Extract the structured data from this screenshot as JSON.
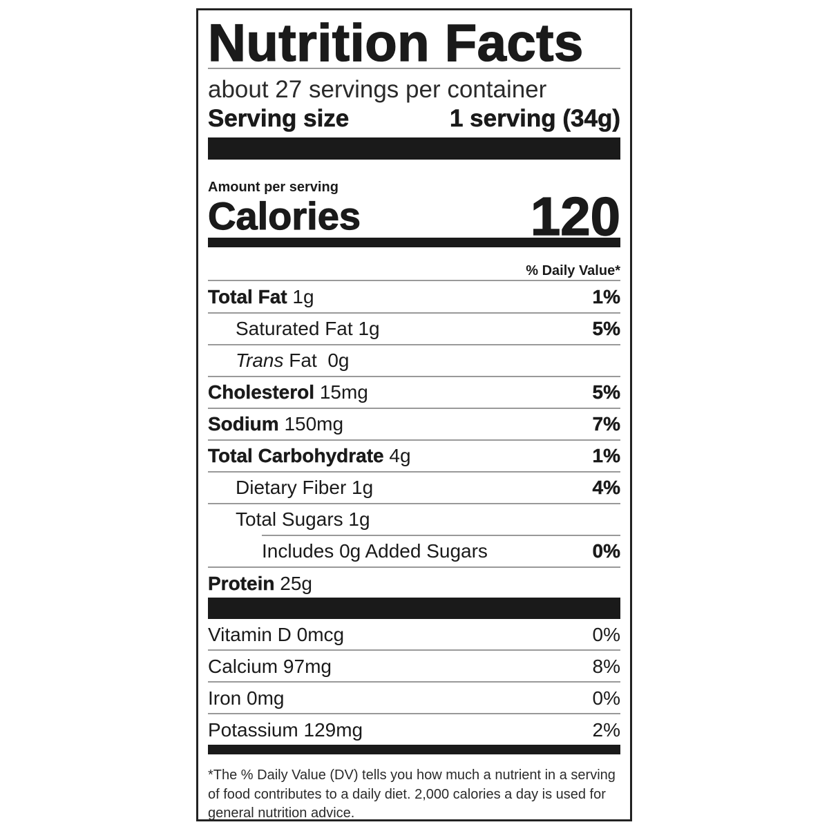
{
  "title": "Nutrition Facts",
  "servings_per_container": "about 27 servings per container",
  "serving_size": {
    "label": "Serving size",
    "value": "1 serving (34g)"
  },
  "amount_per_serving": "Amount per serving",
  "calories": {
    "label": "Calories",
    "value": "120"
  },
  "daily_value_header": "% Daily Value*",
  "nutrients": [
    {
      "name": "Total Fat",
      "amount": "1g",
      "dv": "1%"
    },
    {
      "name": "Saturated Fat",
      "amount": "1g",
      "dv": "5%"
    },
    {
      "name_italic": "Trans",
      "name": "Fat",
      "amount": "0g"
    },
    {
      "name": "Cholesterol",
      "amount": "15mg",
      "dv": "5%"
    },
    {
      "name": "Sodium",
      "amount": "150mg",
      "dv": "7%"
    },
    {
      "name": "Total Carbohydrate",
      "amount": "4g",
      "dv": "1%"
    },
    {
      "name": "Dietary Fiber",
      "amount": "1g",
      "dv": "4%"
    },
    {
      "name": "Total Sugars",
      "amount": "1g"
    },
    {
      "name": "Includes 0g Added Sugars",
      "dv": "0%"
    },
    {
      "name": "Protein",
      "amount": "25g"
    }
  ],
  "vitamins": [
    {
      "name": "Vitamin D",
      "amount": "0mcg",
      "dv": "0%"
    },
    {
      "name": "Calcium",
      "amount": "97mg",
      "dv": "8%"
    },
    {
      "name": "Iron",
      "amount": "0mg",
      "dv": "0%"
    },
    {
      "name": "Potassium",
      "amount": "129mg",
      "dv": "2%"
    }
  ],
  "footnote": "*The % Daily Value (DV) tells you how much a nutrient in a serving of food contributes to a daily diet. 2,000 calories a day is used for general nutrition advice."
}
